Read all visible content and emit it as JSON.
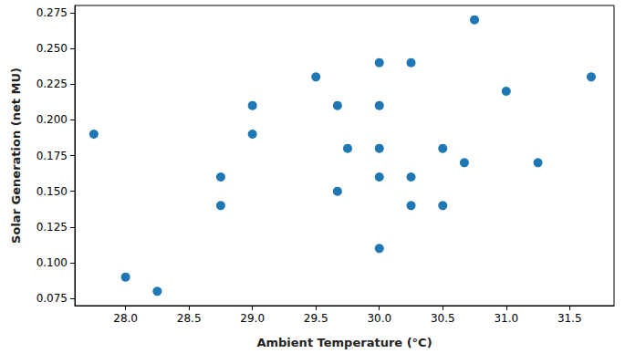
{
  "chart_data": {
    "type": "scatter",
    "x_label": "Ambient Temperature (°C)",
    "y_label": "Solar Generation (net MU)",
    "x": [
      27.75,
      28.0,
      28.25,
      28.75,
      28.75,
      29.0,
      29.0,
      29.5,
      29.67,
      29.67,
      29.75,
      30.0,
      30.0,
      30.0,
      30.0,
      30.0,
      30.25,
      30.25,
      30.25,
      30.5,
      30.5,
      30.67,
      30.75,
      31.0,
      31.25,
      31.67
    ],
    "values": [
      0.19,
      0.09,
      0.08,
      0.16,
      0.14,
      0.21,
      0.19,
      0.23,
      0.21,
      0.15,
      0.18,
      0.24,
      0.21,
      0.18,
      0.16,
      0.11,
      0.24,
      0.16,
      0.14,
      0.18,
      0.14,
      0.17,
      0.27,
      0.22,
      0.17,
      0.23
    ],
    "color": "#1f77b4",
    "marker": "circle",
    "xlim": [
      27.6,
      31.85
    ],
    "xticks": [
      {
        "value": 28,
        "label": "28.0"
      },
      28.5,
      {
        "value": 29,
        "label": "29.0"
      },
      29.5,
      {
        "value": 30,
        "label": "30.0"
      },
      30.5,
      {
        "value": 31,
        "label": "31.0"
      },
      31.5
    ],
    "ylim": [
      0.07,
      0.28
    ],
    "yticks": [
      0.075,
      {
        "value": 0.1,
        "label": "0.100"
      },
      0.125,
      {
        "value": 0.15,
        "label": "0.150"
      },
      0.175,
      {
        "value": 0.2,
        "label": "0.200"
      },
      0.225,
      {
        "value": 0.25,
        "label": "0.250"
      },
      0.275
    ],
    "grid": false
  }
}
